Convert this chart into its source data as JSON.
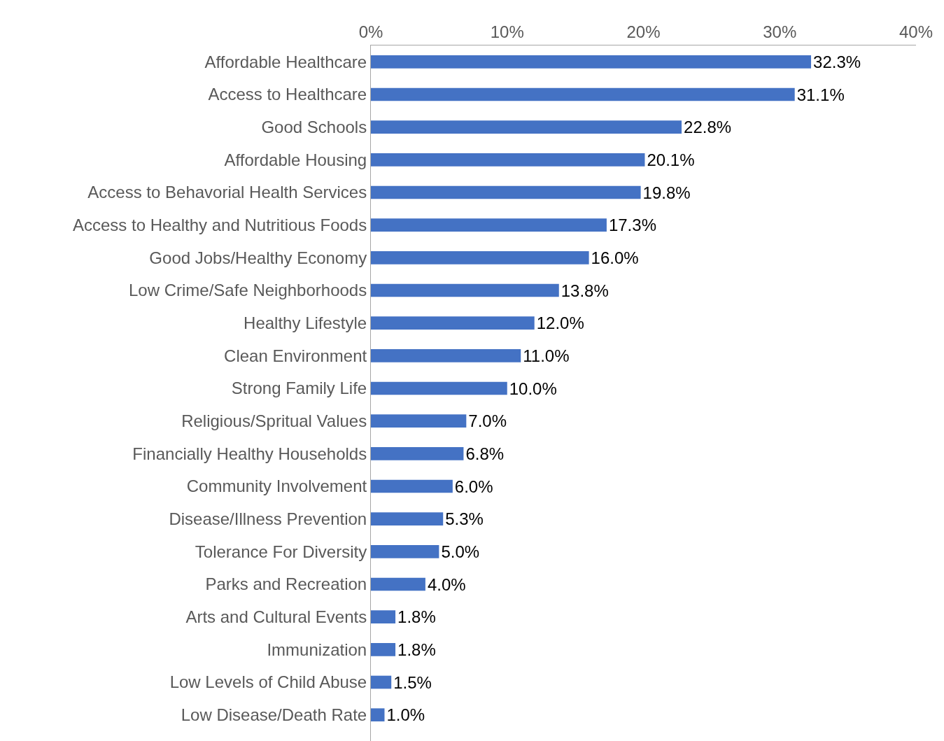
{
  "chart_data": {
    "type": "bar",
    "orientation": "horizontal",
    "categories": [
      "Affordable Healthcare",
      "Access to Healthcare",
      "Good Schools",
      "Affordable Housing",
      "Access to Behavorial Health Services",
      "Access to Healthy and Nutritious Foods",
      "Good Jobs/Healthy Economy",
      "Low Crime/Safe Neighborhoods",
      "Healthy Lifestyle",
      "Clean Environment",
      "Strong Family Life",
      "Religious/Spritual Values",
      "Financially Healthy Households",
      "Community Involvement",
      "Disease/Illness Prevention",
      "Tolerance For Diversity",
      "Parks and Recreation",
      "Arts and Cultural Events",
      "Immunization",
      "Low Levels of Child Abuse",
      "Low Disease/Death Rate"
    ],
    "values": [
      32.3,
      31.1,
      22.8,
      20.1,
      19.8,
      17.3,
      16.0,
      13.8,
      12.0,
      11.0,
      10.0,
      7.0,
      6.8,
      6.0,
      5.3,
      5.0,
      4.0,
      1.8,
      1.8,
      1.5,
      1.0
    ],
    "value_labels": [
      "32.3%",
      "31.1%",
      "22.8%",
      "20.1%",
      "19.8%",
      "17.3%",
      "16.0%",
      "13.8%",
      "12.0%",
      "11.0%",
      "10.0%",
      "7.0%",
      "6.8%",
      "6.0%",
      "5.3%",
      "5.0%",
      "4.0%",
      "1.8%",
      "1.8%",
      "1.5%",
      "1.0%"
    ],
    "color": "#4472c4",
    "xlim": [
      0,
      40
    ],
    "xticks": [
      {
        "value": 0,
        "label": "0%"
      },
      {
        "value": 10,
        "label": "10%"
      },
      {
        "value": 20,
        "label": "20%"
      },
      {
        "value": 30,
        "label": "30%"
      },
      {
        "value": 40,
        "label": "40%"
      }
    ],
    "legend": false
  }
}
